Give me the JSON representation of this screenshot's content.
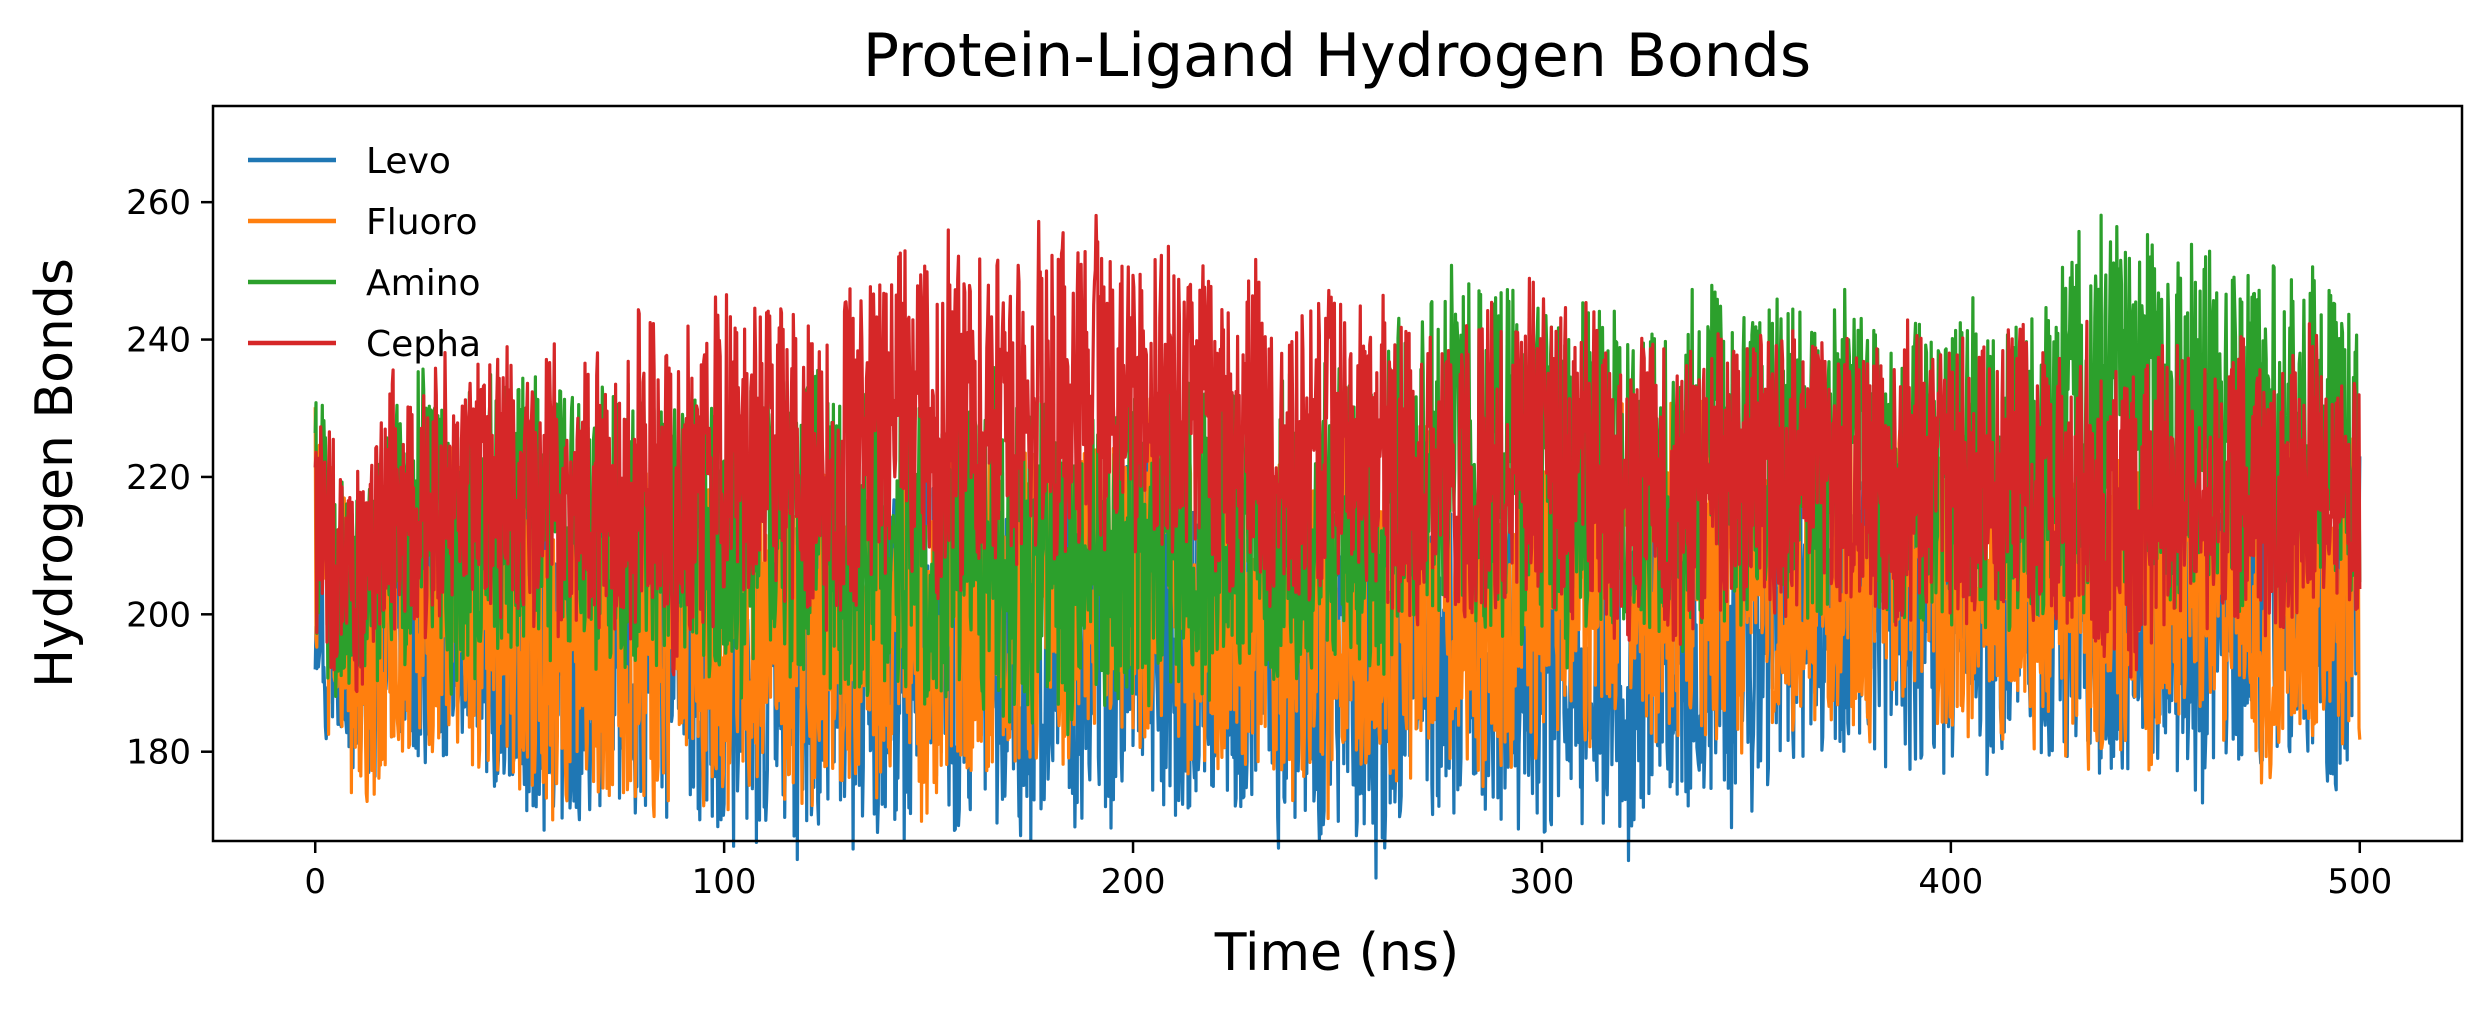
{
  "chart_data": {
    "type": "line",
    "title": "Protein-Ligand Hydrogen Bonds",
    "xlabel": "Time (ns)",
    "ylabel": "Hydrogen Bonds",
    "xlim": [
      -25,
      525
    ],
    "ylim": [
      167,
      274
    ],
    "xticks": [
      0,
      100,
      200,
      300,
      400,
      500
    ],
    "yticks": [
      180,
      200,
      220,
      240,
      260
    ],
    "grid": false,
    "legend_position": "top-left",
    "series": [
      {
        "name": "Levo",
        "color": "#1f77b4",
        "points": [
          [
            0,
            210
          ],
          [
            10,
            188
          ],
          [
            20,
            197
          ],
          [
            40,
            195
          ],
          [
            60,
            192
          ],
          [
            80,
            194
          ],
          [
            100,
            191
          ],
          [
            120,
            190
          ],
          [
            140,
            191
          ],
          [
            160,
            192
          ],
          [
            180,
            194
          ],
          [
            200,
            196
          ],
          [
            220,
            195
          ],
          [
            240,
            193
          ],
          [
            260,
            190
          ],
          [
            280,
            194
          ],
          [
            300,
            193
          ],
          [
            320,
            193
          ],
          [
            340,
            196
          ],
          [
            360,
            200
          ],
          [
            380,
            201
          ],
          [
            400,
            201
          ],
          [
            420,
            200
          ],
          [
            440,
            200
          ],
          [
            460,
            198
          ],
          [
            480,
            199
          ],
          [
            500,
            199
          ]
        ],
        "spread": [
          [
            0,
            24
          ],
          [
            10,
            16
          ],
          [
            20,
            24
          ],
          [
            40,
            26
          ],
          [
            60,
            28
          ],
          [
            80,
            28
          ],
          [
            100,
            28
          ],
          [
            120,
            28
          ],
          [
            140,
            28
          ],
          [
            160,
            28
          ],
          [
            180,
            28
          ],
          [
            200,
            28
          ],
          [
            220,
            28
          ],
          [
            240,
            28
          ],
          [
            260,
            28
          ],
          [
            280,
            28
          ],
          [
            300,
            28
          ],
          [
            320,
            28
          ],
          [
            340,
            28
          ],
          [
            360,
            26
          ],
          [
            380,
            26
          ],
          [
            400,
            26
          ],
          [
            420,
            26
          ],
          [
            440,
            26
          ],
          [
            460,
            26
          ],
          [
            480,
            26
          ],
          [
            500,
            26
          ]
        ]
      },
      {
        "name": "Fluoro",
        "color": "#ff7f0e",
        "points": [
          [
            0,
            212
          ],
          [
            10,
            190
          ],
          [
            20,
            200
          ],
          [
            40,
            198
          ],
          [
            60,
            197
          ],
          [
            80,
            199
          ],
          [
            100,
            197
          ],
          [
            120,
            196
          ],
          [
            140,
            198
          ],
          [
            160,
            200
          ],
          [
            180,
            203
          ],
          [
            200,
            205
          ],
          [
            220,
            204
          ],
          [
            240,
            202
          ],
          [
            260,
            200
          ],
          [
            280,
            203
          ],
          [
            300,
            202
          ],
          [
            320,
            203
          ],
          [
            340,
            205
          ],
          [
            360,
            207
          ],
          [
            380,
            207
          ],
          [
            400,
            206
          ],
          [
            420,
            205
          ],
          [
            440,
            203
          ],
          [
            460,
            203
          ],
          [
            480,
            202
          ],
          [
            500,
            204
          ]
        ],
        "spread": [
          [
            0,
            24
          ],
          [
            10,
            20
          ],
          [
            20,
            24
          ],
          [
            40,
            26
          ],
          [
            60,
            28
          ],
          [
            80,
            30
          ],
          [
            100,
            28
          ],
          [
            120,
            28
          ],
          [
            140,
            28
          ],
          [
            160,
            28
          ],
          [
            180,
            28
          ],
          [
            200,
            28
          ],
          [
            220,
            28
          ],
          [
            240,
            30
          ],
          [
            260,
            28
          ],
          [
            280,
            28
          ],
          [
            300,
            28
          ],
          [
            320,
            28
          ],
          [
            340,
            28
          ],
          [
            360,
            26
          ],
          [
            380,
            26
          ],
          [
            400,
            26
          ],
          [
            420,
            26
          ],
          [
            440,
            26
          ],
          [
            460,
            26
          ],
          [
            480,
            26
          ],
          [
            500,
            26
          ]
        ]
      },
      {
        "name": "Amino",
        "color": "#2ca02c",
        "points": [
          [
            0,
            214
          ],
          [
            10,
            200
          ],
          [
            20,
            210
          ],
          [
            40,
            212
          ],
          [
            60,
            212
          ],
          [
            80,
            211
          ],
          [
            100,
            212
          ],
          [
            120,
            214
          ],
          [
            140,
            212
          ],
          [
            160,
            210
          ],
          [
            180,
            208
          ],
          [
            200,
            209
          ],
          [
            220,
            212
          ],
          [
            240,
            214
          ],
          [
            260,
            216
          ],
          [
            280,
            222
          ],
          [
            300,
            222
          ],
          [
            320,
            220
          ],
          [
            340,
            220
          ],
          [
            360,
            222
          ],
          [
            380,
            222
          ],
          [
            400,
            222
          ],
          [
            420,
            224
          ],
          [
            440,
            230
          ],
          [
            460,
            228
          ],
          [
            480,
            226
          ],
          [
            500,
            225
          ]
        ],
        "spread": [
          [
            0,
            22
          ],
          [
            10,
            18
          ],
          [
            20,
            22
          ],
          [
            40,
            24
          ],
          [
            60,
            24
          ],
          [
            80,
            24
          ],
          [
            100,
            24
          ],
          [
            120,
            26
          ],
          [
            140,
            26
          ],
          [
            160,
            26
          ],
          [
            180,
            26
          ],
          [
            200,
            26
          ],
          [
            220,
            26
          ],
          [
            240,
            26
          ],
          [
            260,
            28
          ],
          [
            280,
            30
          ],
          [
            300,
            30
          ],
          [
            320,
            28
          ],
          [
            340,
            28
          ],
          [
            360,
            26
          ],
          [
            380,
            26
          ],
          [
            400,
            26
          ],
          [
            420,
            28
          ],
          [
            440,
            32
          ],
          [
            460,
            30
          ],
          [
            480,
            28
          ],
          [
            500,
            24
          ]
        ]
      },
      {
        "name": "Cepha",
        "color": "#d62728",
        "points": [
          [
            0,
            214
          ],
          [
            10,
            206
          ],
          [
            20,
            215
          ],
          [
            40,
            218
          ],
          [
            60,
            218
          ],
          [
            80,
            219
          ],
          [
            100,
            220
          ],
          [
            120,
            222
          ],
          [
            140,
            224
          ],
          [
            160,
            228
          ],
          [
            180,
            232
          ],
          [
            200,
            229
          ],
          [
            220,
            226
          ],
          [
            240,
            224
          ],
          [
            260,
            222
          ],
          [
            280,
            222
          ],
          [
            300,
            221
          ],
          [
            320,
            220
          ],
          [
            340,
            220
          ],
          [
            360,
            220
          ],
          [
            380,
            220
          ],
          [
            400,
            220
          ],
          [
            420,
            220
          ],
          [
            440,
            218
          ],
          [
            460,
            218
          ],
          [
            480,
            218
          ],
          [
            500,
            218
          ]
        ],
        "spread": [
          [
            0,
            20
          ],
          [
            10,
            20
          ],
          [
            20,
            22
          ],
          [
            40,
            22
          ],
          [
            60,
            24
          ],
          [
            80,
            26
          ],
          [
            100,
            26
          ],
          [
            120,
            26
          ],
          [
            140,
            28
          ],
          [
            160,
            28
          ],
          [
            180,
            30
          ],
          [
            200,
            28
          ],
          [
            220,
            26
          ],
          [
            240,
            26
          ],
          [
            260,
            26
          ],
          [
            280,
            26
          ],
          [
            300,
            26
          ],
          [
            320,
            26
          ],
          [
            340,
            24
          ],
          [
            360,
            24
          ],
          [
            380,
            24
          ],
          [
            400,
            24
          ],
          [
            420,
            24
          ],
          [
            440,
            26
          ],
          [
            460,
            24
          ],
          [
            480,
            24
          ],
          [
            500,
            22
          ]
        ]
      }
    ]
  }
}
